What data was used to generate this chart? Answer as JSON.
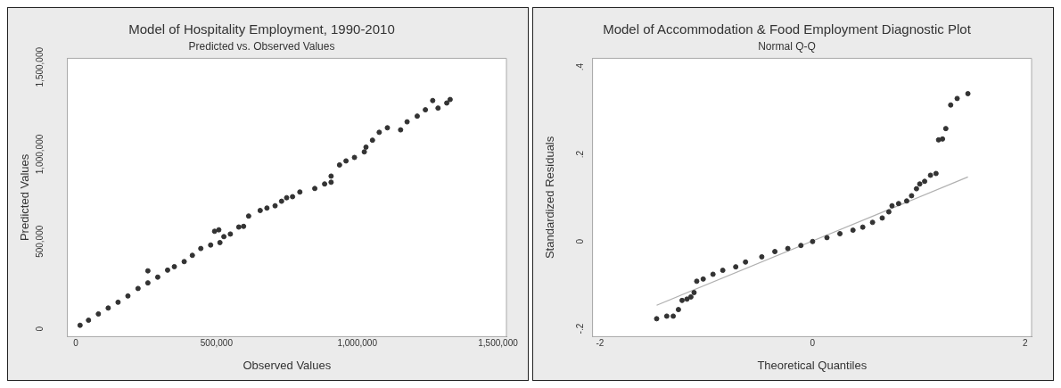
{
  "chart_data": [
    {
      "type": "scatter",
      "title": "Model of Hospitality Employment, 1990-2010",
      "subtitle": "Predicted vs. Observed Values",
      "xlabel": "Observed Values",
      "ylabel": "Predicted Values",
      "xlim": [
        -30000,
        1530000
      ],
      "ylim": [
        -45000,
        1550000
      ],
      "xticks": [
        0,
        {
          "value": 500000,
          "label": "500,000"
        },
        {
          "value": 1000000,
          "label": "1,000,000"
        },
        {
          "value": 1500000,
          "label": "1,500,000"
        }
      ],
      "yticks": [
        0,
        {
          "value": 500000,
          "label": "500,000"
        },
        {
          "value": 1000000,
          "label": "1,000,000"
        },
        {
          "value": 1500000,
          "label": "1,500,000"
        }
      ],
      "grid": false,
      "legend": false,
      "marker": "circle",
      "series": [
        {
          "color": "#333333",
          "x": [
            15000,
            45000,
            80000,
            115000,
            150000,
            185000,
            221000,
            256000,
            256000,
            291000,
            326000,
            350000,
            385000,
            414000,
            444000,
            479000,
            493000,
            508000,
            512000,
            526000,
            549000,
            579000,
            596000,
            614000,
            655000,
            679000,
            708000,
            731000,
            749000,
            770000,
            796000,
            849000,
            884000,
            907000,
            907000,
            937000,
            960000,
            990000,
            1025000,
            1031000,
            1054000,
            1078000,
            1107000,
            1154000,
            1177000,
            1213000,
            1242000,
            1268000,
            1287000,
            1318000,
            1330000
          ],
          "values": [
            20000,
            49000,
            85000,
            119000,
            152000,
            188000,
            231000,
            263000,
            332000,
            296000,
            336000,
            356000,
            385000,
            421000,
            460000,
            480000,
            559000,
            567000,
            494000,
            528000,
            543000,
            583000,
            587000,
            646000,
            678000,
            692000,
            705000,
            731000,
            751000,
            757000,
            784000,
            804000,
            830000,
            875000,
            840000,
            939000,
            962000,
            982000,
            1014000,
            1041000,
            1081000,
            1126000,
            1152000,
            1140000,
            1186000,
            1219000,
            1255000,
            1308000,
            1265000,
            1294000,
            1314000
          ]
        }
      ]
    },
    {
      "type": "scatter",
      "title": "Model of Accommodation & Food Employment Diagnostic Plot",
      "subtitle": "Normal Q-Q",
      "xlabel": "Theoretical Quantiles",
      "ylabel": "Standardized Residuals",
      "xlim": [
        -2.07,
        2.06
      ],
      "ylim": [
        -0.218,
        0.42
      ],
      "xticks": [
        -2,
        0,
        2
      ],
      "yticks": [
        {
          "value": -0.2,
          "label": "-.2"
        },
        0,
        {
          "value": 0.2,
          "label": ".2"
        },
        {
          "value": 0.4,
          "label": ".4"
        }
      ],
      "grid": false,
      "legend": false,
      "marker": "circle",
      "series": [
        {
          "color": "#333333",
          "x": [
            -1.467,
            -1.372,
            -1.311,
            -1.262,
            -1.228,
            -1.182,
            -1.145,
            -1.115,
            -1.09,
            -1.029,
            -0.937,
            -0.845,
            -0.723,
            -0.631,
            -0.478,
            -0.355,
            -0.233,
            -0.11,
            0,
            0.135,
            0.257,
            0.38,
            0.472,
            0.564,
            0.655,
            0.717,
            0.747,
            0.809,
            0.885,
            0.931,
            0.977,
            1.008,
            1.054,
            1.109,
            1.161,
            1.185,
            1.222,
            1.253,
            1.299,
            1.36,
            1.461
          ],
          "values": [
            -0.177,
            -0.171,
            -0.171,
            -0.156,
            -0.135,
            -0.132,
            -0.127,
            -0.117,
            -0.091,
            -0.086,
            -0.075,
            -0.066,
            -0.058,
            -0.047,
            -0.035,
            -0.023,
            -0.016,
            -0.009,
            0,
            0.009,
            0.018,
            0.026,
            0.033,
            0.044,
            0.054,
            0.068,
            0.082,
            0.087,
            0.093,
            0.105,
            0.121,
            0.132,
            0.138,
            0.152,
            0.156,
            0.233,
            0.235,
            0.259,
            0.313,
            0.328,
            0.339
          ]
        },
        {
          "type": "line",
          "color": "#b0b0b0",
          "marker": "none",
          "x": [
            -1.467,
            1.461
          ],
          "values": [
            -0.146,
            0.148
          ]
        }
      ]
    }
  ]
}
